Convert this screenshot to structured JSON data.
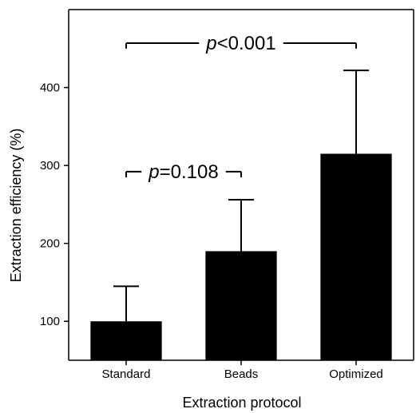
{
  "chart_data": {
    "type": "bar",
    "categories": [
      "Standard",
      "Beads",
      "Optimized"
    ],
    "values": [
      100,
      190,
      315
    ],
    "error_upper": [
      145,
      256,
      422
    ],
    "xlabel": "Extraction protocol",
    "ylabel": "Extraction efficiency (%)",
    "ylim": [
      50,
      500
    ],
    "yticks": [
      100,
      200,
      300,
      400
    ],
    "grid": false,
    "bar_color": "#000000",
    "annotations": [
      {
        "from": "Standard",
        "to": "Beads",
        "p_symbol": "p",
        "text": "=0.108",
        "y": 292
      },
      {
        "from": "Standard",
        "to": "Optimized",
        "p_symbol": "p",
        "text": "<0.001",
        "y": 457
      }
    ]
  }
}
